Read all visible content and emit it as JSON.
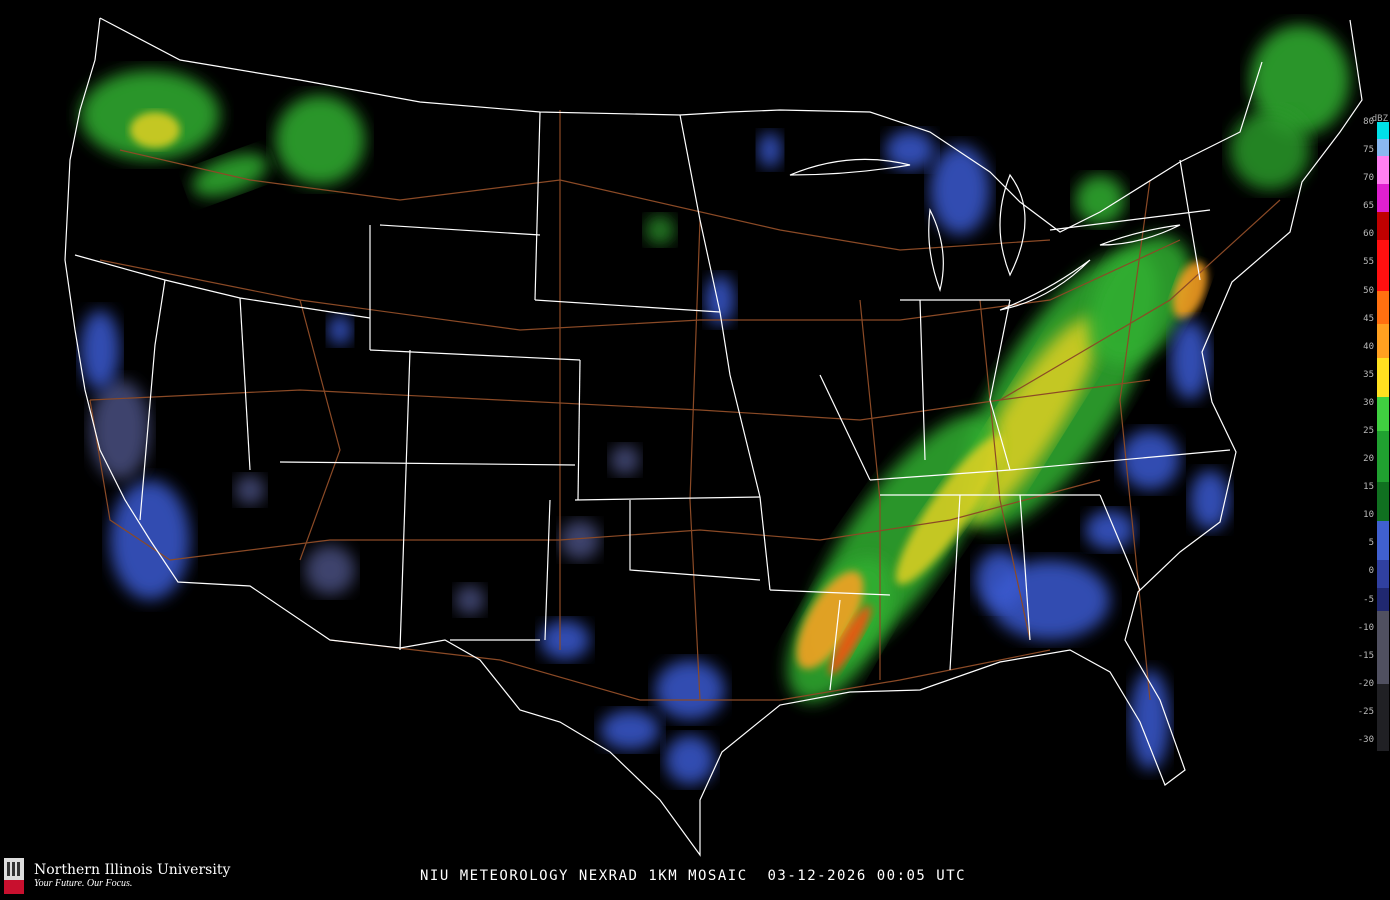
{
  "caption": "NIU METEOROLOGY NEXRAD 1KM MOSAIC  03-12-2026 00:05 UTC",
  "logo": {
    "name": "Northern Illinois University",
    "tagline": "Your Future. Our Focus.",
    "mark_text": "NIU"
  },
  "legend": {
    "unit": "dBZ",
    "ticks": [
      "80",
      "75",
      "70",
      "65",
      "60",
      "55",
      "50",
      "45",
      "40",
      "35",
      "30",
      "25",
      "20",
      "15",
      "10",
      "5",
      "0",
      "-5",
      "-10",
      "-15",
      "-20",
      "-25",
      "-30"
    ],
    "bands": [
      {
        "from": 80,
        "to": 77,
        "color": "#00e0e8"
      },
      {
        "from": 77,
        "to": 74,
        "color": "#8ab8f0"
      },
      {
        "from": 74,
        "to": 69,
        "color": "#ff80f0"
      },
      {
        "from": 69,
        "to": 64,
        "color": "#e020d0"
      },
      {
        "from": 64,
        "to": 59,
        "color": "#c00000"
      },
      {
        "from": 59,
        "to": 50,
        "color": "#ff1010"
      },
      {
        "from": 50,
        "to": 44,
        "color": "#ff7010"
      },
      {
        "from": 44,
        "to": 38,
        "color": "#ffa020"
      },
      {
        "from": 38,
        "to": 31,
        "color": "#ffe020"
      },
      {
        "from": 31,
        "to": 25,
        "color": "#40d040"
      },
      {
        "from": 25,
        "to": 16,
        "color": "#20a030"
      },
      {
        "from": 16,
        "to": 9,
        "color": "#107020"
      },
      {
        "from": 9,
        "to": 2,
        "color": "#4060d0"
      },
      {
        "from": 2,
        "to": -3,
        "color": "#3040a0"
      },
      {
        "from": -3,
        "to": -7,
        "color": "#202870"
      },
      {
        "from": -7,
        "to": -20,
        "color": "#505060"
      },
      {
        "from": -20,
        "to": -32,
        "color": "#202024"
      }
    ]
  },
  "colors": {
    "background": "#000000",
    "borders": "#ffffff",
    "highways": "#8b4a26"
  }
}
